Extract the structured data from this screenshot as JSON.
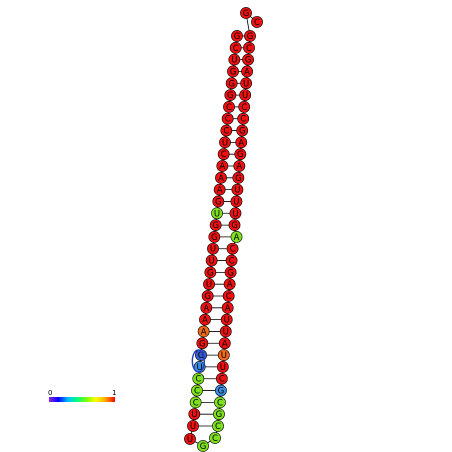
{
  "structure": {
    "type": "rna-secondary-structure",
    "color_scale": {
      "min_label": "0",
      "max_label": "1",
      "stops": [
        "#8a2be2",
        "#0000ff",
        "#00bfff",
        "#00ff7f",
        "#7fff00",
        "#ffff00",
        "#ffa500",
        "#ff0000"
      ]
    },
    "left_strand": [
      {
        "base": "G",
        "color": "#ee1111"
      },
      {
        "base": "C",
        "color": "#ee1111"
      },
      {
        "base": "U",
        "color": "#ee1111"
      },
      {
        "base": "G",
        "color": "#ee1111"
      },
      {
        "base": "G",
        "color": "#ee1111"
      },
      {
        "base": "G",
        "color": "#ee1111"
      },
      {
        "base": "C",
        "color": "#ee1111"
      },
      {
        "base": "C",
        "color": "#ee1111"
      },
      {
        "base": "C",
        "color": "#ee1111"
      },
      {
        "base": "U",
        "color": "#ee1111"
      },
      {
        "base": "C",
        "color": "#ee1111"
      },
      {
        "base": "A",
        "color": "#ee1111"
      },
      {
        "base": "A",
        "color": "#ee1111"
      },
      {
        "base": "A",
        "color": "#ee1111"
      },
      {
        "base": "G",
        "color": "#ee1111"
      },
      {
        "base": "U",
        "color": "#7fe020"
      },
      {
        "base": "G",
        "color": "#ee1111"
      },
      {
        "base": "G",
        "color": "#ee1111"
      },
      {
        "base": "U",
        "color": "#ee1111"
      },
      {
        "base": "U",
        "color": "#ee1111"
      },
      {
        "base": "G",
        "color": "#ee1111"
      },
      {
        "base": "U",
        "color": "#ee1111"
      },
      {
        "base": "G",
        "color": "#ee1111"
      },
      {
        "base": "A",
        "color": "#ee1111"
      },
      {
        "base": "A",
        "color": "#ee1111"
      },
      {
        "base": "A",
        "color": "#f06a1c"
      },
      {
        "base": "G",
        "color": "#ee1111"
      },
      {
        "base": "G",
        "color": "#3a5fd0"
      },
      {
        "base": "U",
        "color": "#3a8fe0"
      },
      {
        "base": "C",
        "color": "#7fe020"
      },
      {
        "base": "C",
        "color": "#7fe020"
      },
      {
        "base": "C",
        "color": "#7fe020"
      },
      {
        "base": "U",
        "color": "#ee1111"
      },
      {
        "base": "U",
        "color": "#ee1111"
      }
    ],
    "loop": [
      {
        "base": "U",
        "color": "#ee1111"
      },
      {
        "base": "G",
        "color": "#7fe020"
      },
      {
        "base": "C",
        "color": "#7fe020"
      }
    ],
    "right_strand": [
      {
        "base": "C",
        "color": "#7fe020"
      },
      {
        "base": "G",
        "color": "#7fe020"
      },
      {
        "base": "C",
        "color": "#7fe020"
      },
      {
        "base": "G",
        "color": "#3a8fe0"
      },
      {
        "base": "C",
        "color": "#ee1111"
      },
      {
        "base": "U",
        "color": "#ee1111"
      },
      {
        "base": "U",
        "color": "#f06a1c"
      },
      {
        "base": "A",
        "color": "#ee1111"
      },
      {
        "base": "U",
        "color": "#ee1111"
      },
      {
        "base": "U",
        "color": "#ee1111"
      },
      {
        "base": "A",
        "color": "#ee1111"
      },
      {
        "base": "C",
        "color": "#ee1111"
      },
      {
        "base": "A",
        "color": "#ee1111"
      },
      {
        "base": "G",
        "color": "#ee1111"
      },
      {
        "base": "C",
        "color": "#ee1111"
      },
      {
        "base": "C",
        "color": "#ee1111"
      },
      {
        "base": "A",
        "color": "#7fe020"
      },
      {
        "base": "G",
        "color": "#ee1111"
      },
      {
        "base": "U",
        "color": "#ee1111"
      },
      {
        "base": "U",
        "color": "#ee1111"
      },
      {
        "base": "U",
        "color": "#ee1111"
      },
      {
        "base": "G",
        "color": "#ee1111"
      },
      {
        "base": "A",
        "color": "#ee1111"
      },
      {
        "base": "G",
        "color": "#ee1111"
      },
      {
        "base": "A",
        "color": "#ee1111"
      },
      {
        "base": "G",
        "color": "#ee1111"
      },
      {
        "base": "C",
        "color": "#ee1111"
      },
      {
        "base": "C",
        "color": "#ee1111"
      },
      {
        "base": "U",
        "color": "#ee1111"
      },
      {
        "base": "U",
        "color": "#ee1111"
      },
      {
        "base": "A",
        "color": "#ee1111"
      },
      {
        "base": "G",
        "color": "#ee1111"
      },
      {
        "base": "C",
        "color": "#ee1111"
      },
      {
        "base": "G",
        "color": "#ee1111"
      }
    ],
    "tail": [
      {
        "base": "G",
        "color": "#ee1111"
      },
      {
        "base": "C",
        "color": "#ee1111"
      }
    ]
  }
}
